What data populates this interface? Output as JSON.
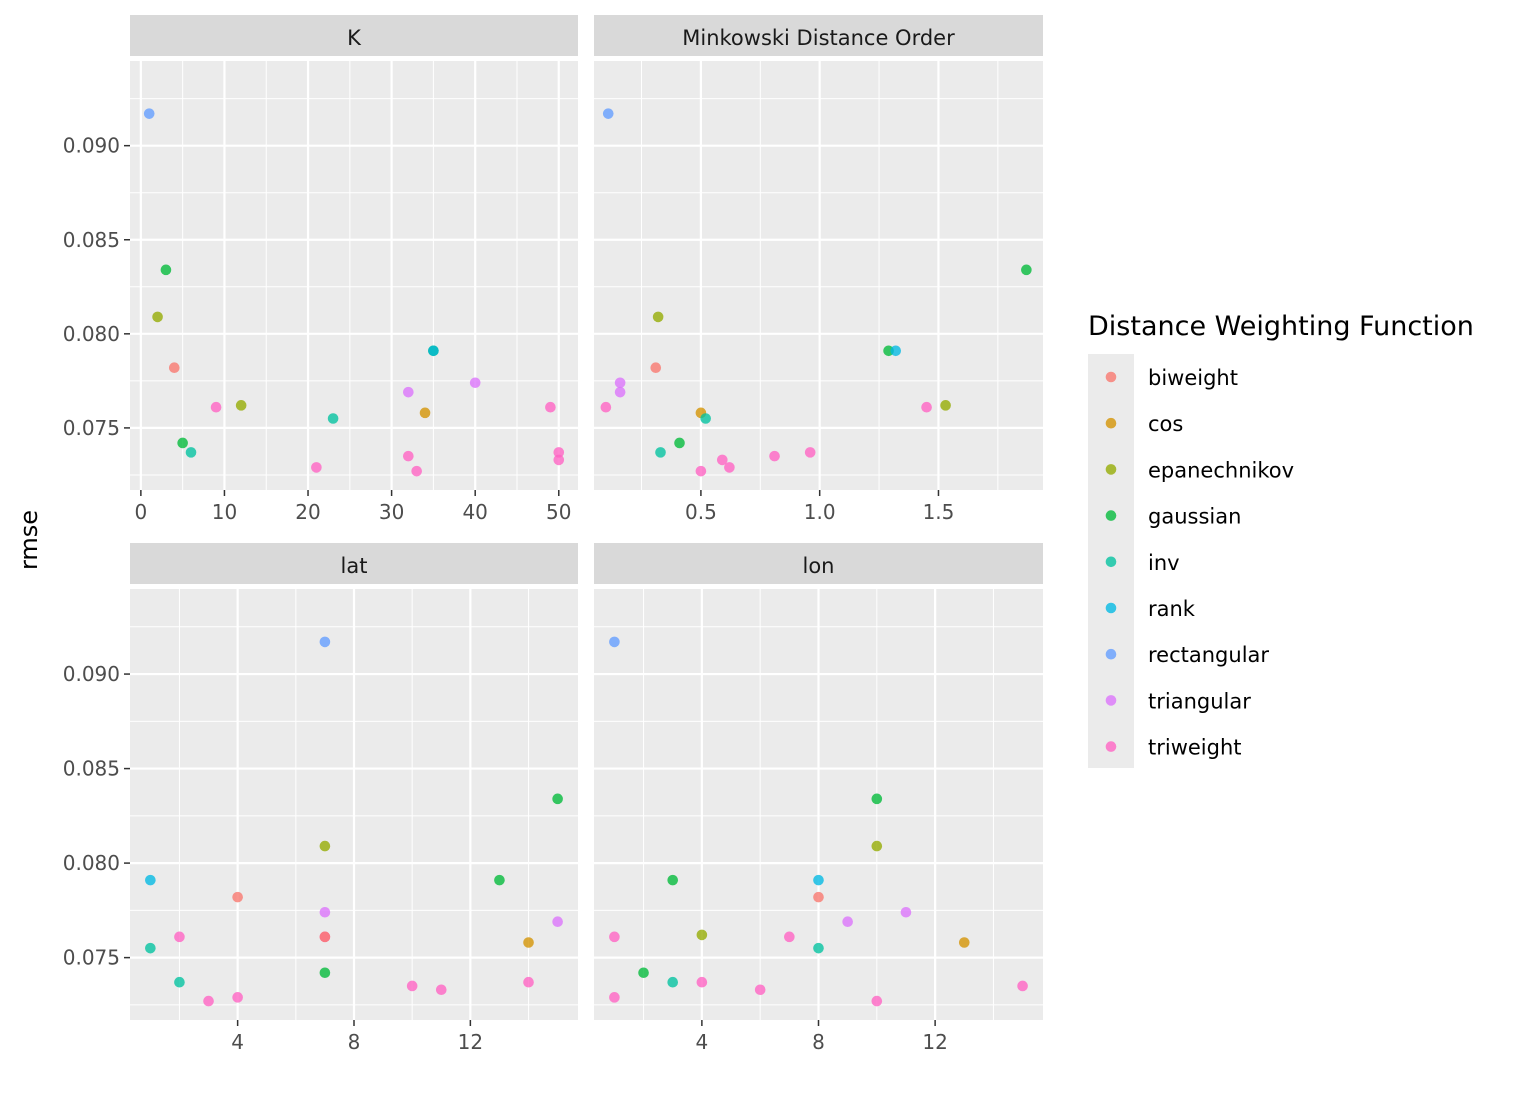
{
  "chart_data": {
    "type": "scatter",
    "ylabel": "rmse",
    "ylim": [
      0.0717,
      0.0945
    ],
    "y_ticks": [
      0.075,
      0.08,
      0.085,
      0.09
    ],
    "y_tick_labels": [
      "0.075",
      "0.080",
      "0.085",
      "0.090"
    ],
    "grid": true,
    "legend": {
      "title": "Distance Weighting Function",
      "position": "right",
      "entries": [
        {
          "name": "biweight",
          "color": "#F8766D"
        },
        {
          "name": "cos",
          "color": "#D39200"
        },
        {
          "name": "epanechnikov",
          "color": "#93AA00"
        },
        {
          "name": "gaussian",
          "color": "#00BA38"
        },
        {
          "name": "inv",
          "color": "#00C19F"
        },
        {
          "name": "rank",
          "color": "#00B9E3"
        },
        {
          "name": "rectangular",
          "color": "#619CFF"
        },
        {
          "name": "triangular",
          "color": "#DB72FB"
        },
        {
          "name": "triweight",
          "color": "#FF61C3"
        }
      ]
    },
    "facets": [
      {
        "strip": "K",
        "xlim": [
          -1.3,
          52.3
        ],
        "x_ticks": [
          0,
          10,
          20,
          30,
          40,
          50
        ],
        "x_tick_labels": [
          "0",
          "10",
          "20",
          "30",
          "40",
          "50"
        ],
        "points": [
          {
            "x": 1,
            "y": 0.0917,
            "series": "rectangular"
          },
          {
            "x": 3,
            "y": 0.0834,
            "series": "gaussian"
          },
          {
            "x": 2,
            "y": 0.0809,
            "series": "epanechnikov"
          },
          {
            "x": 4,
            "y": 0.0782,
            "series": "biweight"
          },
          {
            "x": 9,
            "y": 0.0761,
            "series": "triweight"
          },
          {
            "x": 12,
            "y": 0.0762,
            "series": "epanechnikov"
          },
          {
            "x": 5,
            "y": 0.0742,
            "series": "gaussian"
          },
          {
            "x": 6,
            "y": 0.0737,
            "series": "inv"
          },
          {
            "x": 21,
            "y": 0.0729,
            "series": "triweight"
          },
          {
            "x": 23,
            "y": 0.0755,
            "series": "inv"
          },
          {
            "x": 32,
            "y": 0.0769,
            "series": "triangular"
          },
          {
            "x": 35,
            "y": 0.0791,
            "series": "gaussian"
          },
          {
            "x": 35,
            "y": 0.0791,
            "series": "rank"
          },
          {
            "x": 34,
            "y": 0.0758,
            "series": "cos"
          },
          {
            "x": 32,
            "y": 0.0735,
            "series": "triweight"
          },
          {
            "x": 33,
            "y": 0.0727,
            "series": "triweight"
          },
          {
            "x": 40,
            "y": 0.0774,
            "series": "triangular"
          },
          {
            "x": 49,
            "y": 0.0761,
            "series": "triweight"
          },
          {
            "x": 50,
            "y": 0.0737,
            "series": "triweight"
          },
          {
            "x": 50,
            "y": 0.0733,
            "series": "triweight"
          }
        ]
      },
      {
        "strip": "Minkowski Distance Order",
        "xlim": [
          0.05,
          1.94
        ],
        "x_ticks": [
          0.5,
          1.0,
          1.5
        ],
        "x_tick_labels": [
          "0.5",
          "1.0",
          "1.5"
        ],
        "points": [
          {
            "x": 0.11,
            "y": 0.0917,
            "series": "rectangular"
          },
          {
            "x": 1.87,
            "y": 0.0834,
            "series": "gaussian"
          },
          {
            "x": 0.32,
            "y": 0.0809,
            "series": "epanechnikov"
          },
          {
            "x": 0.31,
            "y": 0.0782,
            "series": "biweight"
          },
          {
            "x": 1.29,
            "y": 0.0791,
            "series": "gaussian"
          },
          {
            "x": 1.32,
            "y": 0.0791,
            "series": "rank"
          },
          {
            "x": 0.16,
            "y": 0.0774,
            "series": "triangular"
          },
          {
            "x": 0.16,
            "y": 0.0769,
            "series": "triangular"
          },
          {
            "x": 0.1,
            "y": 0.0761,
            "series": "triweight"
          },
          {
            "x": 0.5,
            "y": 0.0758,
            "series": "cos"
          },
          {
            "x": 0.52,
            "y": 0.0755,
            "series": "inv"
          },
          {
            "x": 1.45,
            "y": 0.0761,
            "series": "triweight"
          },
          {
            "x": 1.53,
            "y": 0.0762,
            "series": "epanechnikov"
          },
          {
            "x": 0.41,
            "y": 0.0742,
            "series": "gaussian"
          },
          {
            "x": 0.33,
            "y": 0.0737,
            "series": "inv"
          },
          {
            "x": 0.5,
            "y": 0.0727,
            "series": "triweight"
          },
          {
            "x": 0.59,
            "y": 0.0733,
            "series": "triweight"
          },
          {
            "x": 0.62,
            "y": 0.0729,
            "series": "triweight"
          },
          {
            "x": 0.81,
            "y": 0.0735,
            "series": "triweight"
          },
          {
            "x": 0.96,
            "y": 0.0737,
            "series": "triweight"
          }
        ]
      },
      {
        "strip": "lat",
        "xlim": [
          0.3,
          15.7
        ],
        "x_ticks": [
          4,
          8,
          12
        ],
        "x_tick_labels": [
          "4",
          "8",
          "12"
        ],
        "points": [
          {
            "x": 7,
            "y": 0.0917,
            "series": "rectangular"
          },
          {
            "x": 15,
            "y": 0.0834,
            "series": "gaussian"
          },
          {
            "x": 7,
            "y": 0.0809,
            "series": "epanechnikov"
          },
          {
            "x": 1,
            "y": 0.0791,
            "series": "rank"
          },
          {
            "x": 13,
            "y": 0.0791,
            "series": "gaussian"
          },
          {
            "x": 4,
            "y": 0.0782,
            "series": "biweight"
          },
          {
            "x": 7,
            "y": 0.0774,
            "series": "triangular"
          },
          {
            "x": 15,
            "y": 0.0769,
            "series": "triangular"
          },
          {
            "x": 2,
            "y": 0.0761,
            "series": "triweight"
          },
          {
            "x": 7,
            "y": 0.0761,
            "series": "triweight"
          },
          {
            "x": 7,
            "y": 0.0761,
            "series": "biweight"
          },
          {
            "x": 14,
            "y": 0.0758,
            "series": "cos"
          },
          {
            "x": 1,
            "y": 0.0755,
            "series": "inv"
          },
          {
            "x": 7,
            "y": 0.0742,
            "series": "gaussian"
          },
          {
            "x": 2,
            "y": 0.0737,
            "series": "inv"
          },
          {
            "x": 14,
            "y": 0.0737,
            "series": "triweight"
          },
          {
            "x": 10,
            "y": 0.0735,
            "series": "triweight"
          },
          {
            "x": 11,
            "y": 0.0733,
            "series": "triweight"
          },
          {
            "x": 4,
            "y": 0.0729,
            "series": "triweight"
          },
          {
            "x": 3,
            "y": 0.0727,
            "series": "triweight"
          }
        ]
      },
      {
        "strip": "lon",
        "xlim": [
          0.3,
          15.7
        ],
        "x_ticks": [
          4,
          8,
          12
        ],
        "x_tick_labels": [
          "4",
          "8",
          "12"
        ],
        "points": [
          {
            "x": 1,
            "y": 0.0917,
            "series": "rectangular"
          },
          {
            "x": 10,
            "y": 0.0834,
            "series": "gaussian"
          },
          {
            "x": 10,
            "y": 0.0809,
            "series": "epanechnikov"
          },
          {
            "x": 3,
            "y": 0.0791,
            "series": "gaussian"
          },
          {
            "x": 8,
            "y": 0.0791,
            "series": "rank"
          },
          {
            "x": 8,
            "y": 0.0782,
            "series": "biweight"
          },
          {
            "x": 11,
            "y": 0.0774,
            "series": "triangular"
          },
          {
            "x": 9,
            "y": 0.0769,
            "series": "triangular"
          },
          {
            "x": 1,
            "y": 0.0761,
            "series": "triweight"
          },
          {
            "x": 4,
            "y": 0.0762,
            "series": "epanechnikov"
          },
          {
            "x": 7,
            "y": 0.0761,
            "series": "triweight"
          },
          {
            "x": 13,
            "y": 0.0758,
            "series": "cos"
          },
          {
            "x": 8,
            "y": 0.0755,
            "series": "inv"
          },
          {
            "x": 2,
            "y": 0.0742,
            "series": "gaussian"
          },
          {
            "x": 3,
            "y": 0.0737,
            "series": "inv"
          },
          {
            "x": 4,
            "y": 0.0737,
            "series": "triweight"
          },
          {
            "x": 15,
            "y": 0.0735,
            "series": "triweight"
          },
          {
            "x": 6,
            "y": 0.0733,
            "series": "triweight"
          },
          {
            "x": 1,
            "y": 0.0729,
            "series": "triweight"
          },
          {
            "x": 10,
            "y": 0.0727,
            "series": "triweight"
          }
        ]
      }
    ]
  }
}
